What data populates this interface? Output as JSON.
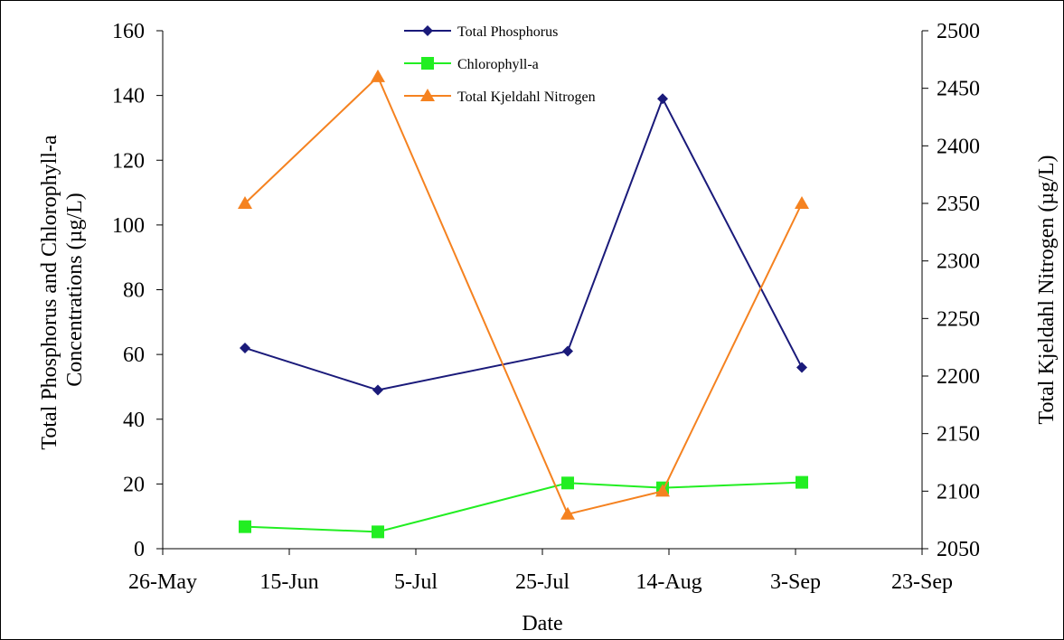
{
  "chart_data": {
    "type": "line",
    "xlabel": "Date",
    "ylabel": "Total Phosphorus and Chlorophyll-a Concentrations (µg/L)",
    "ylabel_lines": [
      "Total Phosphorus and Chlorophyll-a",
      "Concentrations (µg/L)"
    ],
    "y2label": "Total Kjeldahl Nitrogen (µg/L)",
    "x_ticks": [
      "26-May",
      "15-Jun",
      "5-Jul",
      "25-Jul",
      "14-Aug",
      "3-Sep",
      "23-Sep"
    ],
    "x_tick_dates": [
      "2008-05-26",
      "2008-06-15",
      "2008-07-05",
      "2008-07-25",
      "2008-08-14",
      "2008-09-03",
      "2008-09-23"
    ],
    "xlim": [
      "2008-05-26",
      "2008-09-23"
    ],
    "ylim": [
      0,
      160
    ],
    "y_ticks": [
      0,
      20,
      40,
      60,
      80,
      100,
      120,
      140,
      160
    ],
    "y2lim": [
      2050,
      2500
    ],
    "y2_ticks": [
      2050,
      2100,
      2150,
      2200,
      2250,
      2300,
      2350,
      2400,
      2450,
      2500
    ],
    "grid": false,
    "legend_position": "top-center",
    "series": [
      {
        "name": "Total Phosphorus",
        "axis": "left",
        "marker": "diamond",
        "color": "#1a1a7a",
        "x": [
          "2008-06-08",
          "2008-06-29",
          "2008-07-29",
          "2008-08-13",
          "2008-09-04"
        ],
        "values": [
          62,
          49,
          61,
          139,
          56
        ]
      },
      {
        "name": "Chlorophyll-a",
        "axis": "left",
        "marker": "square",
        "color": "#22ee22",
        "x": [
          "2008-06-08",
          "2008-06-29",
          "2008-07-29",
          "2008-08-13",
          "2008-09-04"
        ],
        "values": [
          6.8,
          5.2,
          20.3,
          18.8,
          20.5
        ]
      },
      {
        "name": "Total Kjeldahl Nitrogen",
        "axis": "right",
        "marker": "triangle",
        "color": "#f58220",
        "x": [
          "2008-06-08",
          "2008-06-29",
          "2008-07-29",
          "2008-08-13",
          "2008-09-04"
        ],
        "values": [
          2350,
          2460,
          2080,
          2100,
          2350
        ]
      }
    ]
  }
}
